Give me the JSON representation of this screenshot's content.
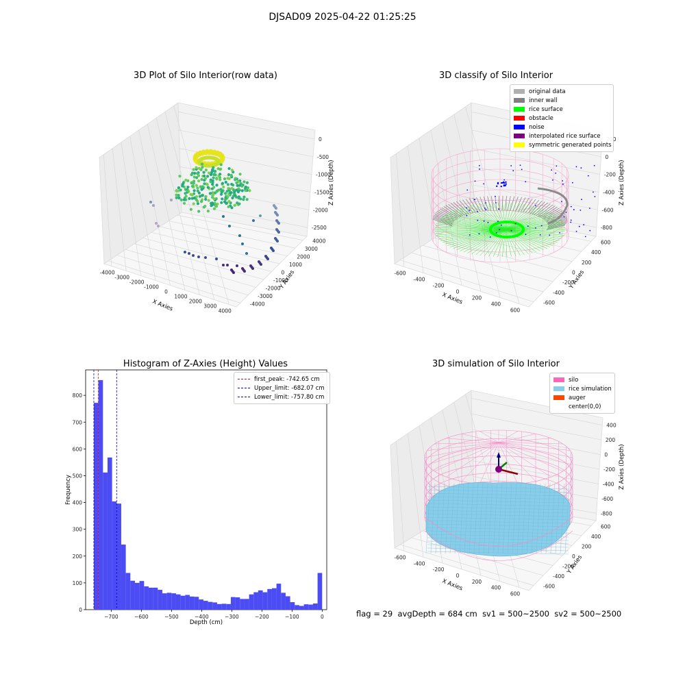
{
  "suptitle": "DJSAD09 2025-04-22 01:25:25",
  "status": {
    "flag": "flag = 29",
    "avg_depth": "avgDepth = 684 cm",
    "sv1": "sv1 = 500~2500",
    "sv2": "sv2 = 500~2500"
  },
  "panels": {
    "raw": {
      "title": "3D Plot of Silo Interior(row data)",
      "xlabel": "X Axies",
      "ylabel": "Y Axies",
      "zlabel": "Z Axies (Depth)",
      "xticks": [
        "-4000",
        "-3000",
        "-2000",
        "-1000",
        "0",
        "1000",
        "2000",
        "3000",
        "4000"
      ],
      "yticks": [
        "4000",
        "3000",
        "2000",
        "1000",
        "0",
        "-1000",
        "-2000",
        "-3000",
        "-4000"
      ],
      "zticks": [
        "0",
        "-500",
        "-1000",
        "-1500",
        "-2000",
        "-2500"
      ]
    },
    "classify": {
      "title": "3D classify of Silo Interior",
      "xlabel": "X Axies",
      "ylabel": "Y Axies",
      "zlabel": "Z Axies (Depth)",
      "xticks": [
        "-600",
        "-400",
        "-200",
        "0",
        "200",
        "400",
        "600"
      ],
      "yticks": [
        "600",
        "400",
        "200",
        "0",
        "-200",
        "-400",
        "-600"
      ],
      "zticks": [
        "200",
        "0",
        "-200",
        "-400",
        "-600",
        "-800"
      ],
      "legend": [
        {
          "label": "original data",
          "color": "#b0b0b0"
        },
        {
          "label": "inner wall",
          "color": "#808080"
        },
        {
          "label": "rice surface",
          "color": "#00ff00"
        },
        {
          "label": "obstacle",
          "color": "#ff0000"
        },
        {
          "label": "noise",
          "color": "#0000ff"
        },
        {
          "label": "interpolated rice surface",
          "color": "#800080"
        },
        {
          "label": "symmetric generated points",
          "color": "#ffff00"
        }
      ]
    },
    "histogram": {
      "title": "Histogram of Z-Axies (Height) Values",
      "xlabel": "Depth (cm)",
      "ylabel": "Frequency",
      "legend": [
        {
          "label": "first_peak: -742.65 cm",
          "color": "#ff0000"
        },
        {
          "label": "Upper_limit: -682.07 cm",
          "color": "#0000cc"
        },
        {
          "label": "Lower_limit: -757.80 cm",
          "color": "#0000cc"
        }
      ]
    },
    "simulation": {
      "title": "3D simulation of Silo Interior",
      "xlabel": "X Axies",
      "ylabel": "Y Axies",
      "zlabel": "Z Axies (Depth)",
      "xticks": [
        "-600",
        "-400",
        "-200",
        "0",
        "200",
        "400",
        "600"
      ],
      "yticks": [
        "600",
        "400",
        "200",
        "0",
        "-200",
        "-400",
        "-600"
      ],
      "zticks": [
        "400",
        "200",
        "0",
        "-200",
        "-400",
        "-600",
        "-800"
      ],
      "legend": [
        {
          "label": "silo",
          "color": "#ff69b4"
        },
        {
          "label": "rice simulation",
          "color": "#87ceeb"
        },
        {
          "label": "auger",
          "color": "#ff4500"
        },
        {
          "label": "center(0,0)",
          "color": "#ffffff"
        }
      ]
    }
  },
  "chart_data": [
    {
      "type": "scatter",
      "title": "3D Plot of Silo Interior(row data)",
      "xlabel": "X Axies",
      "ylabel": "Y Axies",
      "zlabel": "Z Axies (Depth)",
      "xlim": [
        -4000,
        4000
      ],
      "ylim": [
        -4000,
        4000
      ],
      "zlim": [
        -2800,
        0
      ]
    },
    {
      "type": "scatter",
      "title": "3D classify of Silo Interior",
      "xlabel": "X Axies",
      "ylabel": "Y Axies",
      "zlabel": "Z Axies (Depth)",
      "xlim": [
        -700,
        700
      ],
      "ylim": [
        -700,
        700
      ],
      "zlim": [
        -900,
        300
      ],
      "series": [
        {
          "name": "original data"
        },
        {
          "name": "inner wall"
        },
        {
          "name": "rice surface"
        },
        {
          "name": "obstacle"
        },
        {
          "name": "noise"
        },
        {
          "name": "interpolated rice surface"
        },
        {
          "name": "symmetric generated points"
        }
      ]
    },
    {
      "type": "bar",
      "title": "Histogram of Z-Axies (Height) Values",
      "xlabel": "Depth (cm)",
      "ylabel": "Frequency",
      "xlim": [
        -785,
        15
      ],
      "ylim": [
        0,
        895
      ],
      "xticks": [
        -700,
        -600,
        -500,
        -400,
        -300,
        -200,
        -100,
        0
      ],
      "yticks": [
        0,
        100,
        200,
        300,
        400,
        500,
        600,
        700,
        800
      ],
      "bin_start": -757.8,
      "bin_width": 15.15,
      "values": [
        772,
        857,
        512,
        568,
        404,
        396,
        243,
        137,
        108,
        100,
        107,
        87,
        82,
        82,
        74,
        61,
        63,
        61,
        57,
        52,
        55,
        49,
        48,
        38,
        33,
        29,
        27,
        21,
        22,
        21,
        47,
        46,
        40,
        40,
        57,
        65,
        72,
        65,
        77,
        80,
        97,
        63,
        50,
        28,
        17,
        14,
        20,
        19,
        23,
        137
      ],
      "vlines": [
        {
          "name": "first_peak",
          "x": -742.65,
          "color": "#ff0000"
        },
        {
          "name": "Upper_limit",
          "x": -682.07,
          "color": "#0000cc"
        },
        {
          "name": "Lower_limit",
          "x": -757.8,
          "color": "#0000cc"
        }
      ]
    },
    {
      "type": "scatter",
      "title": "3D simulation of Silo Interior",
      "xlabel": "X Axies",
      "ylabel": "Y Axies",
      "zlabel": "Z Axies (Depth)",
      "xlim": [
        -700,
        700
      ],
      "ylim": [
        -700,
        700
      ],
      "zlim": [
        -900,
        500
      ],
      "series": [
        {
          "name": "silo"
        },
        {
          "name": "rice simulation"
        },
        {
          "name": "auger"
        },
        {
          "name": "center(0,0)"
        }
      ]
    }
  ]
}
